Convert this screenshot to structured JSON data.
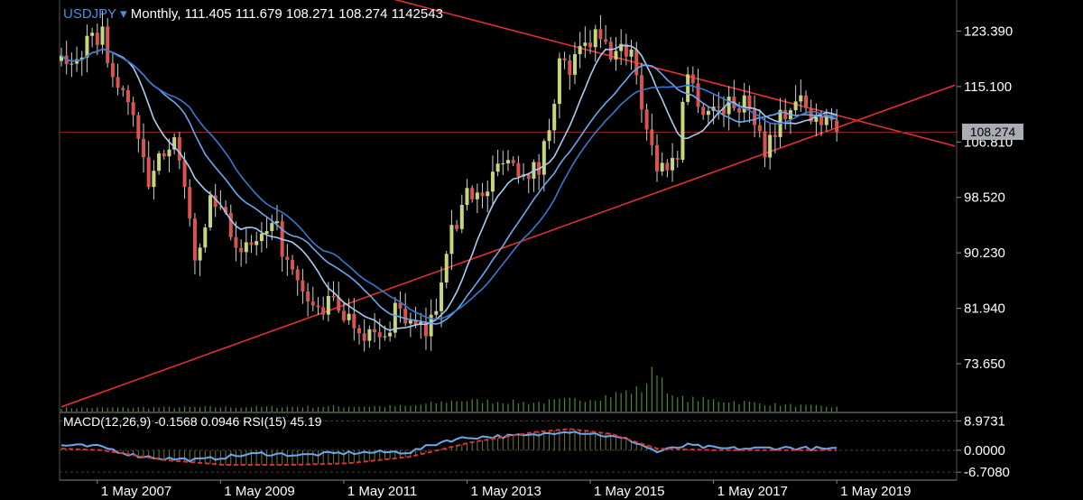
{
  "header": {
    "symbol": "USDJPY",
    "dropdown_glyph": "▾",
    "timeframe": "Monthly,",
    "ohlcv": "111.405 111.679 108.271 108.274 1142543"
  },
  "indicators": {
    "label": "MACD(12,26,9) -0.1568 0.0946 RSI(15) 45.19"
  },
  "current_price": "108.274",
  "colors": {
    "background": "#000000",
    "bull": "#c8d67a",
    "bear": "#d9534f",
    "trendline": "#e03030",
    "ma_light": "#a8cdf2",
    "ma_mid": "#6aa8ee",
    "ma_dark": "#3a78d0",
    "volume": "#4f8a2c",
    "macd_signal": "#e03030",
    "axis_text": "#ffffff",
    "grid": "#2a2a2a"
  },
  "chart_data": [
    {
      "type": "candlestick",
      "ylim": [
        66.5,
        127.5
      ],
      "xlim": [
        "2006-10",
        "2021-04"
      ],
      "x_ticks": [
        "1 May 2007",
        "1 May 2009",
        "1 May 2011",
        "1 May 2013",
        "1 May 2015",
        "1 May 2017",
        "1 May 2019"
      ],
      "x_tick_dates": [
        "2007-05",
        "2009-05",
        "2011-05",
        "2013-05",
        "2015-05",
        "2017-05",
        "2019-05"
      ],
      "y_ticks": [
        123.39,
        115.1,
        106.81,
        98.52,
        90.23,
        81.94,
        73.65
      ],
      "y_tick_labels": [
        "123.390",
        "115.100",
        "106.810",
        "98.520",
        "90.230",
        "81.940",
        "73.650"
      ],
      "anchors_close": [
        [
          "2006-10",
          118.5
        ],
        [
          "2006-12",
          119.0
        ],
        [
          "2007-06",
          123.2
        ],
        [
          "2007-08",
          116.0
        ],
        [
          "2007-12",
          111.5
        ],
        [
          "2008-03",
          99.5
        ],
        [
          "2008-06",
          106.0
        ],
        [
          "2008-08",
          108.5
        ],
        [
          "2008-10",
          98.5
        ],
        [
          "2008-12",
          90.5
        ],
        [
          "2009-01",
          89.5
        ],
        [
          "2009-03",
          98.5
        ],
        [
          "2009-06",
          96.5
        ],
        [
          "2009-09",
          89.5
        ],
        [
          "2009-12",
          92.0
        ],
        [
          "2010-04",
          93.5
        ],
        [
          "2010-06",
          88.5
        ],
        [
          "2010-09",
          83.5
        ],
        [
          "2010-12",
          81.5
        ],
        [
          "2011-03",
          83.0
        ],
        [
          "2011-06",
          80.5
        ],
        [
          "2011-10",
          78.0
        ],
        [
          "2012-01",
          77.0
        ],
        [
          "2012-03",
          82.5
        ],
        [
          "2012-06",
          79.5
        ],
        [
          "2012-09",
          78.0
        ],
        [
          "2012-11",
          82.5
        ],
        [
          "2013-01",
          91.5
        ],
        [
          "2013-03",
          94.5
        ],
        [
          "2013-05",
          100.5
        ],
        [
          "2013-08",
          98.0
        ],
        [
          "2013-12",
          105.0
        ],
        [
          "2014-03",
          103.0
        ],
        [
          "2014-07",
          102.5
        ],
        [
          "2014-09",
          109.5
        ],
        [
          "2014-11",
          118.5
        ],
        [
          "2015-01",
          117.5
        ],
        [
          "2015-03",
          120.0
        ],
        [
          "2015-06",
          122.5
        ],
        [
          "2015-09",
          120.0
        ],
        [
          "2015-12",
          120.5
        ],
        [
          "2016-01",
          121.0
        ],
        [
          "2016-03",
          112.5
        ],
        [
          "2016-06",
          103.0
        ],
        [
          "2016-08",
          103.5
        ],
        [
          "2016-10",
          104.5
        ],
        [
          "2016-11",
          114.0
        ],
        [
          "2016-12",
          117.0
        ],
        [
          "2017-03",
          111.5
        ],
        [
          "2017-06",
          112.0
        ],
        [
          "2017-09",
          112.5
        ],
        [
          "2017-12",
          112.5
        ],
        [
          "2018-03",
          106.0
        ],
        [
          "2018-06",
          110.5
        ],
        [
          "2018-10",
          113.0
        ],
        [
          "2018-12",
          110.0
        ],
        [
          "2019-03",
          111.0
        ],
        [
          "2019-04",
          111.4
        ],
        [
          "2019-05",
          108.274
        ]
      ],
      "trendlines": [
        {
          "name": "upper",
          "from": [
            "2012-03",
            128.1
          ],
          "to": [
            "2021-04",
            106.2
          ]
        },
        {
          "name": "lower",
          "from": [
            "2006-10",
            67.2
          ],
          "to": [
            "2021-04",
            115.3
          ]
        }
      ],
      "horizontal_line": 108.274,
      "moving_averages": [
        {
          "period": 10,
          "color": "ma_light"
        },
        {
          "period": 20,
          "color": "ma_mid"
        },
        {
          "period": 26,
          "color": "ma_dark"
        }
      ],
      "volume_anchors": [
        [
          "2006-10",
          0.08
        ],
        [
          "2012-06",
          0.12
        ],
        [
          "2013-03",
          0.25
        ],
        [
          "2014-06",
          0.2
        ],
        [
          "2015-06",
          0.3
        ],
        [
          "2016-03",
          0.5
        ],
        [
          "2016-06",
          1.0
        ],
        [
          "2016-09",
          0.3
        ],
        [
          "2017-06",
          0.25
        ],
        [
          "2018-06",
          0.15
        ],
        [
          "2019-05",
          0.1
        ]
      ]
    },
    {
      "type": "line",
      "name": "macd-panel",
      "ylim": [
        -8.6,
        11.0
      ],
      "y_ticks": [
        8.9731,
        0.0,
        -6.708
      ],
      "y_tick_labels": [
        "8.9731",
        "0.0000",
        "-6.7080"
      ],
      "series": [
        {
          "name": "MACD",
          "points": [
            [
              "2006-10",
              1.5
            ],
            [
              "2007-06",
              1.0
            ],
            [
              "2007-12",
              -1.5
            ],
            [
              "2008-06",
              -2.5
            ],
            [
              "2009-01",
              -3.0
            ],
            [
              "2009-06",
              -2.0
            ],
            [
              "2010-01",
              -1.0
            ],
            [
              "2010-09",
              -1.5
            ],
            [
              "2011-06",
              -0.8
            ],
            [
              "2012-06",
              -0.5
            ],
            [
              "2013-01",
              3.0
            ],
            [
              "2013-06",
              4.0
            ],
            [
              "2014-06",
              4.5
            ],
            [
              "2014-12",
              6.0
            ],
            [
              "2015-06",
              5.0
            ],
            [
              "2016-01",
              3.0
            ],
            [
              "2016-06",
              -0.5
            ],
            [
              "2016-12",
              1.5
            ],
            [
              "2017-06",
              0.5
            ],
            [
              "2018-01",
              0.5
            ],
            [
              "2018-06",
              0.8
            ],
            [
              "2019-01",
              0.5
            ],
            [
              "2019-05",
              0.2
            ]
          ]
        },
        {
          "name": "Signal",
          "points": [
            [
              "2006-10",
              0.5
            ],
            [
              "2007-06",
              0.0
            ],
            [
              "2008-06",
              -3.0
            ],
            [
              "2009-06",
              -4.5
            ],
            [
              "2010-06",
              -4.5
            ],
            [
              "2011-06",
              -4.0
            ],
            [
              "2012-06",
              -2.0
            ],
            [
              "2013-06",
              2.5
            ],
            [
              "2014-06",
              5.5
            ],
            [
              "2015-01",
              6.5
            ],
            [
              "2015-09",
              5.0
            ],
            [
              "2016-06",
              0.5
            ],
            [
              "2017-06",
              0.0
            ],
            [
              "2018-06",
              0.0
            ],
            [
              "2019-05",
              0.0
            ]
          ]
        }
      ]
    }
  ]
}
